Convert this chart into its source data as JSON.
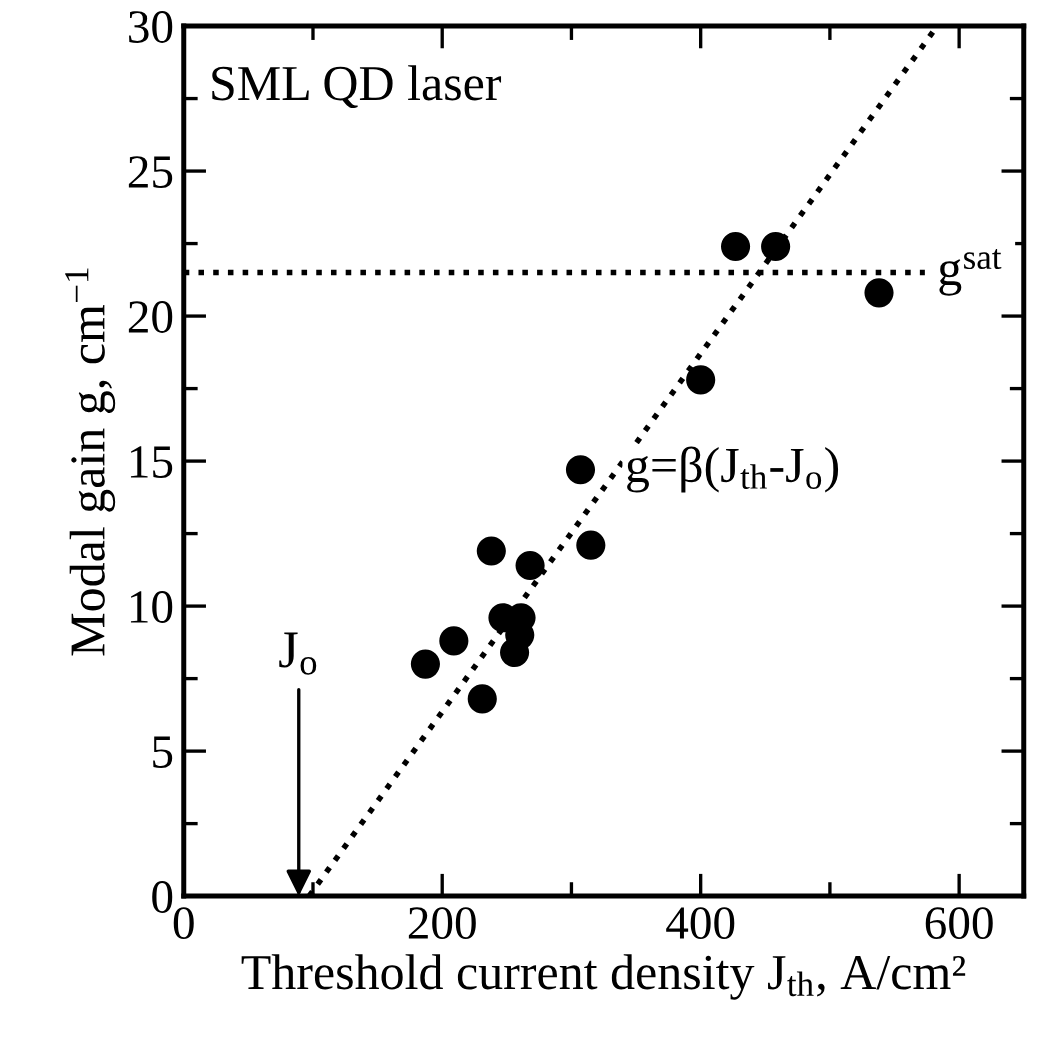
{
  "chart_data": {
    "type": "scatter",
    "xlabel": "Threshold current density J$_{th}$, A/cm²",
    "ylabel": "Modal gain g, cm$^{−1}$",
    "xlim": [
      0,
      650
    ],
    "ylim": [
      0,
      30
    ],
    "xticks": [
      0,
      200,
      400,
      600
    ],
    "yticks": [
      0,
      5,
      10,
      15,
      20,
      25,
      30
    ],
    "marker": "circle",
    "grid": false,
    "series": [
      {
        "color": "#000000",
        "x": [
          187,
          209,
          231,
          238,
          247,
          261,
          260,
          256,
          268,
          307,
          315,
          400,
          427,
          458,
          538
        ],
        "values": [
          8.0,
          8.8,
          6.8,
          11.9,
          9.6,
          9.6,
          9.0,
          8.4,
          11.4,
          14.7,
          12.1,
          17.8,
          22.4,
          22.4,
          20.8
        ]
      },
      {
        "type": "line",
        "color": "#000000",
        "line_style": "dotted",
        "marker": "none",
        "x": [
          97,
          583
        ],
        "values": [
          0,
          30
        ]
      }
    ],
    "ref_lines": [
      {
        "axis": "y",
        "value": 21.5,
        "label": "g$^{sat}$",
        "line_style": "dotted",
        "color": "#000000"
      }
    ],
    "annotations": [
      "SML QD laser",
      {
        "text": "g=β(J$_{th}$-J$_{o}$)",
        "x": 307,
        "y": 14.7
      },
      "J$_{o}$"
    ]
  }
}
